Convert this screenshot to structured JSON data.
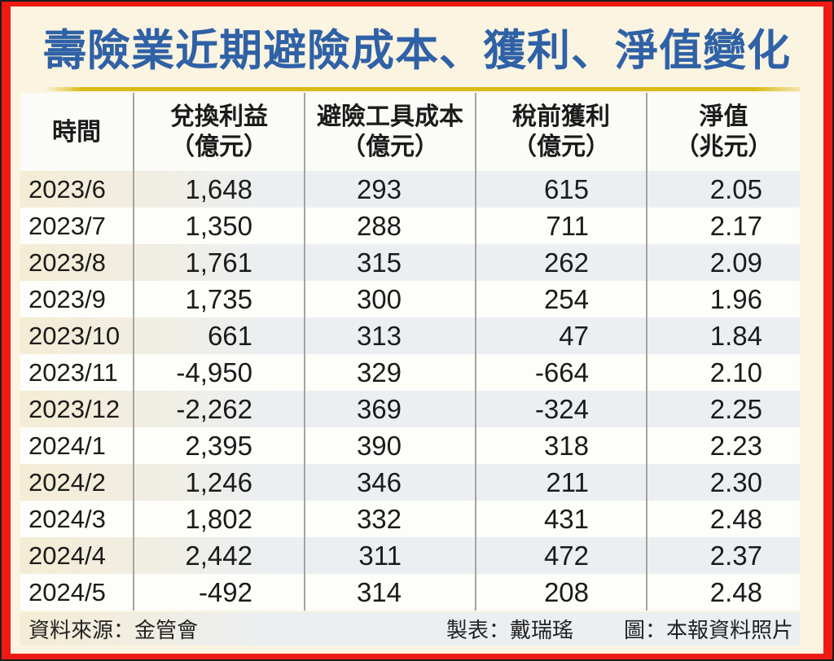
{
  "title": "壽險業近期避險成本、獲利、淨值變化",
  "table": {
    "columns": [
      {
        "label": "時間",
        "unit": ""
      },
      {
        "label": "兌換利益",
        "unit": "（億元）"
      },
      {
        "label": "避險工具成本",
        "unit": "（億元）"
      },
      {
        "label": "稅前獲利",
        "unit": "（億元）"
      },
      {
        "label": "淨值",
        "unit": "（兆元）"
      }
    ]
  },
  "footer": {
    "source": "資料來源：金管會",
    "credit": "製表：戴瑞瑤",
    "photo": "圖：本報資料照片"
  },
  "colors": {
    "frame_red": "#ee1b15",
    "outer_black": "#1c1c1c",
    "page_cream": "#fbf4e0",
    "title_blue": "#2f61a6",
    "gold_rule": "#d9ba16",
    "row_shade_left": "#f4edd5",
    "row_shade_right": "#eceff2",
    "row_plain": "#fdfdfa",
    "separator_gray": "#a5a59e",
    "text_dark": "#1b1b1b"
  },
  "chart_data": {
    "type": "table",
    "title": "壽險業近期避險成本、獲利、淨值變化",
    "columns": [
      "時間",
      "兌換利益（億元）",
      "避險工具成本（億元）",
      "稅前獲利（億元）",
      "淨值（兆元）"
    ],
    "rows": [
      [
        "2023/6",
        1648,
        293,
        615,
        2.05
      ],
      [
        "2023/7",
        1350,
        288,
        711,
        2.17
      ],
      [
        "2023/8",
        1761,
        315,
        262,
        2.09
      ],
      [
        "2023/9",
        1735,
        300,
        254,
        1.96
      ],
      [
        "2023/10",
        661,
        313,
        47,
        1.84
      ],
      [
        "2023/11",
        -4950,
        329,
        -664,
        2.1
      ],
      [
        "2023/12",
        -2262,
        369,
        -324,
        2.25
      ],
      [
        "2024/1",
        2395,
        390,
        318,
        2.23
      ],
      [
        "2024/2",
        1246,
        346,
        211,
        2.3
      ],
      [
        "2024/3",
        1802,
        332,
        431,
        2.48
      ],
      [
        "2024/4",
        2442,
        311,
        472,
        2.37
      ],
      [
        "2024/5",
        -492,
        314,
        208,
        2.48
      ]
    ],
    "source": "金管會",
    "layout": {
      "striped": true,
      "stripe_start_row": 0
    }
  }
}
